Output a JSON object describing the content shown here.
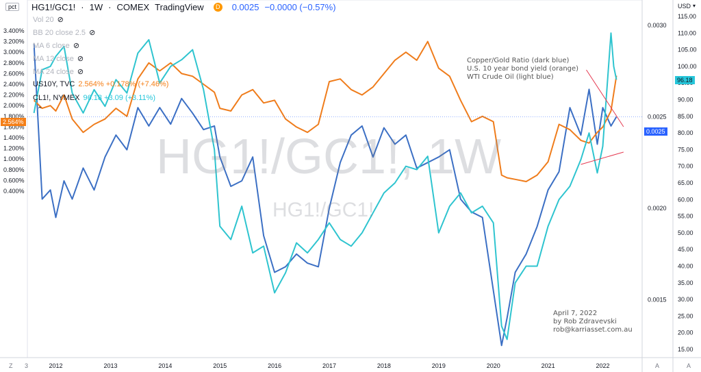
{
  "header": {
    "symbol": "HG1!/GC1!",
    "interval": "1W",
    "exchange": "COMEX",
    "source": "TradingView",
    "delayed_badge": "D",
    "price": "0.0025",
    "change": "−0.0000 (−0.57%)"
  },
  "left_axis": {
    "unit_label": "pct",
    "ticks": [
      "3.400%",
      "3.200%",
      "3.000%",
      "2.800%",
      "2.600%",
      "2.400%",
      "2.200%",
      "2.000%",
      "1.800%",
      "1.600%",
      "1.400%",
      "1.200%",
      "1.000%",
      "0.800%",
      "0.600%",
      "0.400%"
    ],
    "last_value_badge": "2.564%"
  },
  "mid_axis": {
    "ticks": [
      "0.0030",
      "0.0025",
      "0.0020",
      "0.0015"
    ],
    "last_value_badge": "0.0025"
  },
  "right_axis": {
    "unit_label": "USD",
    "ticks": [
      "115.00",
      "110.00",
      "105.00",
      "100.00",
      "95.00",
      "90.00",
      "85.00",
      "80.00",
      "75.00",
      "70.00",
      "65.00",
      "60.00",
      "55.00",
      "50.00",
      "45.00",
      "40.00",
      "35.00",
      "30.00",
      "25.00",
      "20.00",
      "15.00"
    ],
    "last_value_badge": "96.18"
  },
  "x_axis": {
    "ticks": [
      "2012",
      "2013",
      "2014",
      "2015",
      "2016",
      "2017",
      "2018",
      "2019",
      "2020",
      "2021",
      "2022"
    ],
    "left_fragment": "3",
    "corner_left": "Z",
    "corner_mid": "A",
    "corner_right": "A"
  },
  "watermark": {
    "big": "HG1!/GC1!, 1W",
    "small": "HG1!/GC1!"
  },
  "indicators": [
    {
      "label": "Vol 20"
    },
    {
      "label": "BB 20 close 2.5"
    },
    {
      "label": "MA 6 close"
    },
    {
      "label": "MA 12 close"
    },
    {
      "label": "MA 24 close"
    }
  ],
  "series_legends": [
    {
      "name": "US10Y, TVC",
      "value": "2.564%  +0.178% (+7.46%)",
      "color": "#f57f17"
    },
    {
      "name": "CL1!, NYMEX",
      "value": "96.18  +3.09 (+3.11%)",
      "color": "#26c6da"
    }
  ],
  "annotations": {
    "legend_lines": [
      "Copper/Gold Ratio (dark blue)",
      "U.S. 10 year bond yield (orange)",
      "WTI Crude Oil (light blue)"
    ],
    "signature_lines": [
      "April 7, 2022",
      "by Rob Zdravevski",
      "rob@karriasset.com.au"
    ]
  },
  "colors": {
    "copper_gold": "#3b6fc4",
    "us10y": "#ef7c1b",
    "crude": "#2ec4cf",
    "trendline": "#e53950",
    "text_blue": "#2962ff"
  },
  "chart_data": {
    "type": "line",
    "x_unit": "year",
    "series": [
      {
        "name": "Copper/Gold Ratio (dark blue)",
        "axis": "mid",
        "x": [
          2011.6,
          2011.75,
          2011.9,
          2012.0,
          2012.15,
          2012.3,
          2012.5,
          2012.7,
          2012.9,
          2013.1,
          2013.3,
          2013.5,
          2013.7,
          2013.9,
          2014.1,
          2014.3,
          2014.5,
          2014.7,
          2014.9,
          2015.0,
          2015.2,
          2015.4,
          2015.6,
          2015.8,
          2016.0,
          2016.2,
          2016.4,
          2016.6,
          2016.8,
          2017.0,
          2017.2,
          2017.4,
          2017.6,
          2017.8,
          2018.0,
          2018.2,
          2018.4,
          2018.6,
          2018.8,
          2019.0,
          2019.2,
          2019.4,
          2019.6,
          2019.8,
          2020.0,
          2020.15,
          2020.25,
          2020.4,
          2020.6,
          2020.8,
          2021.0,
          2021.2,
          2021.4,
          2021.6,
          2021.75,
          2021.9,
          2022.0,
          2022.15,
          2022.25
        ],
        "values": [
          0.0029,
          0.00205,
          0.0021,
          0.00195,
          0.00215,
          0.00205,
          0.00222,
          0.0021,
          0.00228,
          0.0024,
          0.00232,
          0.00255,
          0.00245,
          0.00255,
          0.00246,
          0.0026,
          0.00252,
          0.00243,
          0.00245,
          0.00228,
          0.00212,
          0.00215,
          0.00228,
          0.00185,
          0.00165,
          0.00168,
          0.00175,
          0.0017,
          0.00168,
          0.002,
          0.00225,
          0.0024,
          0.00245,
          0.00228,
          0.00244,
          0.00235,
          0.0024,
          0.00222,
          0.00225,
          0.00228,
          0.00232,
          0.00205,
          0.00198,
          0.00195,
          0.00155,
          0.00125,
          0.0014,
          0.00165,
          0.00175,
          0.0019,
          0.0021,
          0.0022,
          0.00255,
          0.0024,
          0.00265,
          0.00235,
          0.00255,
          0.00245,
          0.0025
        ]
      },
      {
        "name": "U.S. 10 year bond yield (orange)",
        "axis": "left",
        "x": [
          2011.6,
          2011.75,
          2011.9,
          2012.0,
          2012.15,
          2012.3,
          2012.5,
          2012.7,
          2012.9,
          2013.1,
          2013.3,
          2013.5,
          2013.7,
          2013.9,
          2014.1,
          2014.3,
          2014.5,
          2014.7,
          2014.9,
          2015.0,
          2015.2,
          2015.4,
          2015.6,
          2015.8,
          2016.0,
          2016.2,
          2016.4,
          2016.6,
          2016.8,
          2017.0,
          2017.2,
          2017.4,
          2017.6,
          2017.8,
          2018.0,
          2018.2,
          2018.4,
          2018.6,
          2018.8,
          2019.0,
          2019.2,
          2019.4,
          2019.6,
          2019.8,
          2020.0,
          2020.15,
          2020.25,
          2020.4,
          2020.6,
          2020.8,
          2021.0,
          2021.2,
          2021.4,
          2021.6,
          2021.75,
          2021.9,
          2022.0,
          2022.15,
          2022.25
        ],
        "values": [
          2.1,
          1.95,
          2.0,
          1.9,
          2.2,
          1.75,
          1.5,
          1.65,
          1.75,
          1.95,
          1.8,
          2.5,
          2.8,
          2.65,
          2.8,
          2.6,
          2.55,
          2.4,
          2.25,
          1.95,
          1.9,
          2.2,
          2.3,
          2.05,
          2.1,
          1.75,
          1.6,
          1.5,
          1.65,
          2.45,
          2.5,
          2.3,
          2.2,
          2.35,
          2.6,
          2.85,
          3.0,
          2.85,
          3.2,
          2.7,
          2.55,
          2.1,
          1.7,
          1.8,
          1.7,
          0.7,
          0.65,
          0.62,
          0.58,
          0.7,
          0.95,
          1.65,
          1.55,
          1.35,
          1.3,
          1.5,
          1.6,
          1.9,
          2.56
        ]
      },
      {
        "name": "WTI Crude Oil (light blue)",
        "axis": "right",
        "x": [
          2011.6,
          2011.75,
          2011.9,
          2012.0,
          2012.15,
          2012.3,
          2012.5,
          2012.7,
          2012.9,
          2013.1,
          2013.3,
          2013.5,
          2013.7,
          2013.9,
          2014.1,
          2014.3,
          2014.5,
          2014.7,
          2014.9,
          2015.0,
          2015.2,
          2015.4,
          2015.6,
          2015.8,
          2016.0,
          2016.2,
          2016.4,
          2016.6,
          2016.8,
          2017.0,
          2017.2,
          2017.4,
          2017.6,
          2017.8,
          2018.0,
          2018.2,
          2018.4,
          2018.6,
          2018.8,
          2019.0,
          2019.2,
          2019.4,
          2019.6,
          2019.8,
          2020.0,
          2020.15,
          2020.25,
          2020.4,
          2020.6,
          2020.8,
          2021.0,
          2021.2,
          2021.4,
          2021.6,
          2021.75,
          2021.9,
          2022.0,
          2022.15,
          2022.2,
          2022.25
        ],
        "values": [
          86,
          99,
          100,
          103,
          106,
          92,
          86,
          93,
          88,
          96,
          92,
          104,
          108,
          95,
          100,
          102,
          105,
          93,
          75,
          52,
          48,
          58,
          44,
          46,
          32,
          38,
          47,
          44,
          48,
          53,
          48,
          46,
          50,
          56,
          62,
          65,
          70,
          69,
          73,
          50,
          58,
          62,
          56,
          58,
          53,
          22,
          18,
          35,
          40,
          40,
          52,
          60,
          64,
          72,
          80,
          68,
          76,
          110,
          100,
          96
        ]
      }
    ]
  }
}
